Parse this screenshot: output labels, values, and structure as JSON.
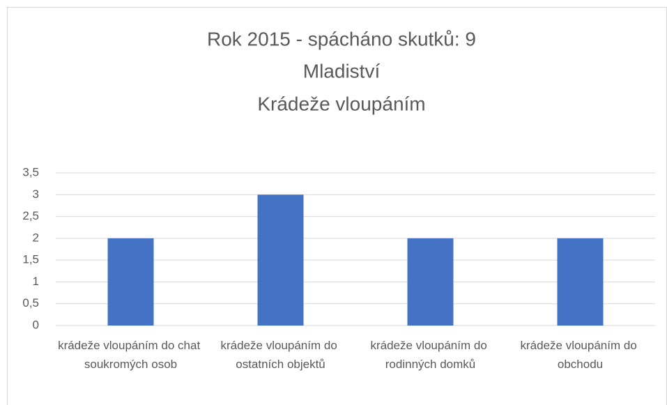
{
  "chart_data": {
    "type": "bar",
    "title": [
      "Rok 2015 - spácháno skutků: 9",
      "Mladiství",
      "Krádeže vloupáním"
    ],
    "categories": [
      "krádeže vloupáním do chat soukromých osob",
      "krádeže vloupáním do ostatních objektů",
      "krádeže vloupáním do rodinných domků",
      "krádeže vloupáním do obchodu"
    ],
    "values": [
      2,
      3,
      2,
      2
    ],
    "color": "#4472c4",
    "ylim": [
      0,
      3.5
    ],
    "yticks": [
      0,
      {
        "value": 0.5,
        "label": "0,5"
      },
      1,
      {
        "value": 1.5,
        "label": "1,5"
      },
      2,
      {
        "value": 2.5,
        "label": "2,5"
      },
      3,
      {
        "value": 3.5,
        "label": "3,5"
      }
    ],
    "grid": true
  }
}
